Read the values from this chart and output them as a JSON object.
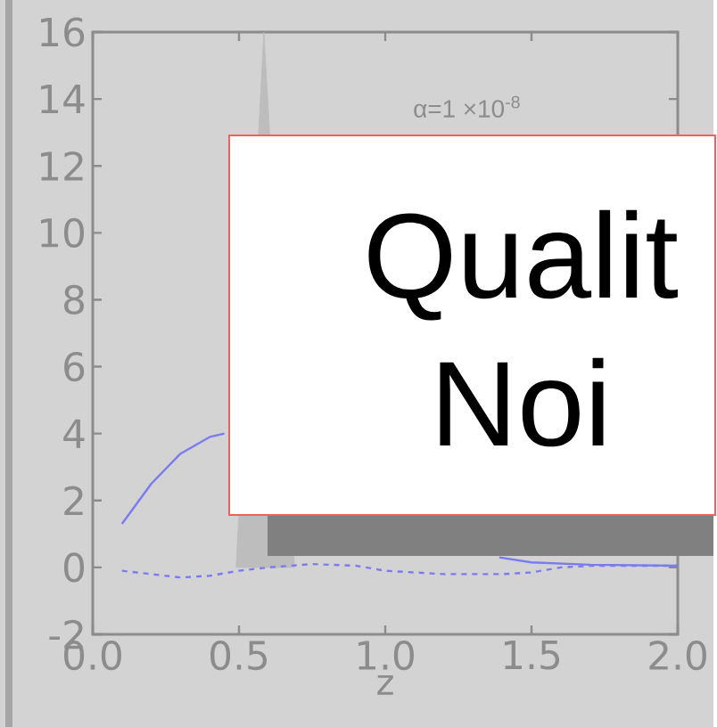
{
  "chart_data": {
    "type": "line",
    "xlabel": "z",
    "annotations": [
      "α=1 ×10$^{-8}$",
      "Qualit",
      "Noi"
    ],
    "xlim": [
      0,
      2
    ],
    "ylim": [
      -2,
      16
    ],
    "xticks": [
      {
        "value": 0,
        "label": "0.0"
      },
      {
        "value": 0.5,
        "label": "0.5"
      },
      {
        "value": 1,
        "label": "1.0"
      },
      {
        "value": 1.5,
        "label": "1.5"
      },
      {
        "value": 2,
        "label": "2.0"
      }
    ],
    "yticks": [
      -2,
      0,
      2,
      4,
      6,
      8,
      10,
      12,
      14,
      16
    ],
    "marker": "none",
    "series": [
      {
        "type": "area",
        "color": "#bdbdbd",
        "x": [
          0.49,
          0.585,
          0.69
        ],
        "values": [
          0,
          16,
          0
        ]
      },
      {
        "color": "#7b7bf0",
        "line_style": "solid",
        "x": [
          0.1,
          0.2,
          0.3,
          0.4,
          0.45,
          0.8,
          1.39,
          1.5,
          1.7,
          2.0
        ],
        "values": [
          1.3,
          2.5,
          3.4,
          3.9,
          4.0,
          null,
          0.3,
          0.15,
          0.08,
          0.05
        ]
      },
      {
        "color": "#7b7bf0",
        "line_style": "dashed",
        "x": [
          0.1,
          0.2,
          0.3,
          0.4,
          0.5,
          0.6,
          0.75,
          0.9,
          1.0,
          1.2,
          1.4,
          1.5,
          1.6,
          1.7,
          2.0
        ],
        "values": [
          -0.1,
          -0.2,
          -0.3,
          -0.25,
          -0.1,
          0.0,
          0.1,
          0.05,
          -0.1,
          -0.2,
          -0.2,
          -0.15,
          0.0,
          0.05,
          0.05
        ]
      }
    ]
  }
}
